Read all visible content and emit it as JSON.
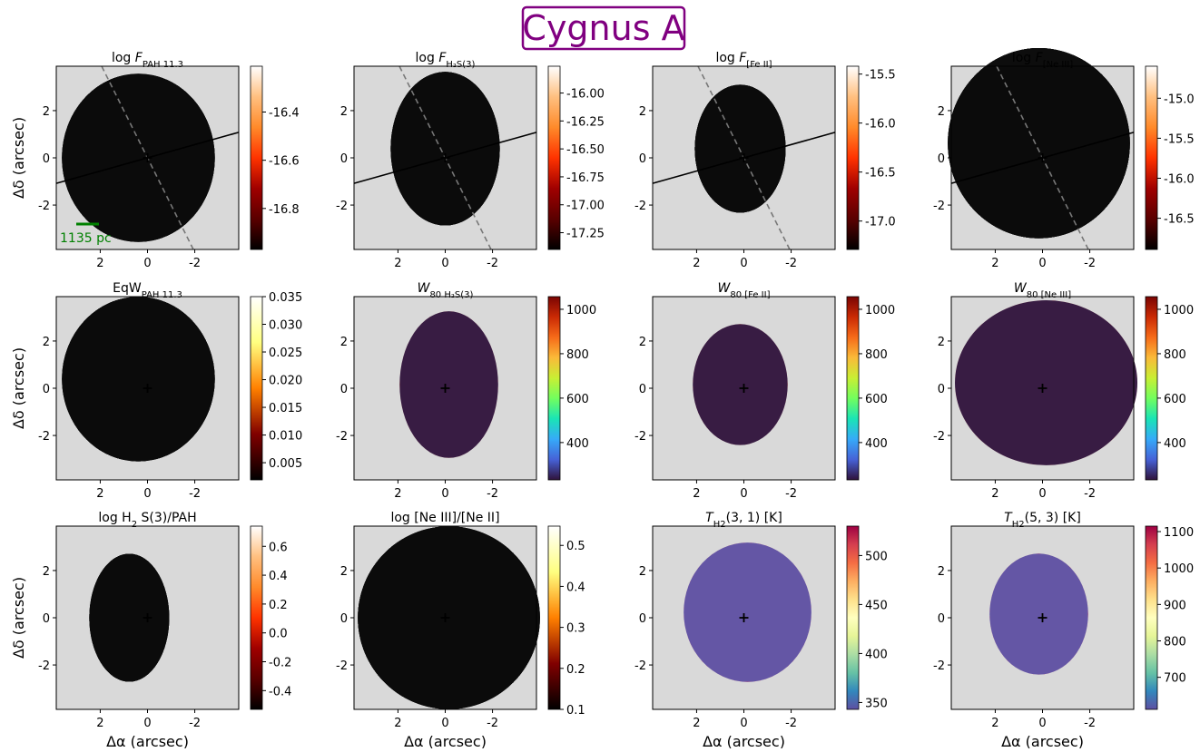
{
  "title": "Cygnus A",
  "chart_data": [
    {
      "type": "heatmap",
      "title": {
        "prefix": "log ",
        "symbol": "F",
        "sub": "PAH 11.3"
      },
      "ylabel": "Δδ (arcsec)",
      "annotation": "1135 pc",
      "xlim": [
        3.86,
        -3.86
      ],
      "ylim": [
        -3.88,
        3.88
      ],
      "xticks": [
        2,
        0,
        -2
      ],
      "yticks": [
        -2,
        0,
        2
      ],
      "colormap": "gist_heat",
      "clim": [
        -16.97,
        -16.21
      ],
      "cticks": [
        -16.8,
        -16.6,
        -16.4
      ]
    },
    {
      "type": "heatmap",
      "title": {
        "prefix": "log ",
        "symbol": "F",
        "sub": "H₂S(3)"
      },
      "xlim": [
        3.86,
        -3.86
      ],
      "ylim": [
        -3.88,
        3.88
      ],
      "xticks": [
        2,
        0,
        -2
      ],
      "yticks": [
        -2,
        0,
        2
      ],
      "colormap": "gist_heat",
      "clim": [
        -17.4,
        -15.76
      ],
      "cticks": [
        {
          "value": -17.25,
          "label": "-17.25"
        },
        {
          "value": -17,
          "label": "-17.00"
        },
        {
          "value": -16.75,
          "label": "-16.75"
        },
        {
          "value": -16.5,
          "label": "-16.50"
        },
        {
          "value": -16.25,
          "label": "-16.25"
        },
        {
          "value": -16,
          "label": "-16.00"
        }
      ]
    },
    {
      "type": "heatmap",
      "title": {
        "prefix": "log ",
        "symbol": "F",
        "sub": "[Fe II]"
      },
      "xlim": [
        3.86,
        -3.86
      ],
      "ylim": [
        -3.88,
        3.88
      ],
      "xticks": [
        2,
        0,
        -2
      ],
      "yticks": [
        -2,
        0,
        2
      ],
      "colormap": "gist_heat",
      "clim": [
        -17.29,
        -15.42
      ],
      "cticks": [
        {
          "value": -17,
          "label": "-17.0"
        },
        -16.5,
        {
          "value": -16,
          "label": "-16.0"
        },
        -15.5
      ]
    },
    {
      "type": "heatmap",
      "title": {
        "prefix": "log ",
        "symbol": "F",
        "sub": "[Ne III]"
      },
      "xlim": [
        3.86,
        -3.86
      ],
      "ylim": [
        -3.88,
        3.88
      ],
      "xticks": [
        2,
        0,
        -2
      ],
      "yticks": [
        -2,
        0,
        2
      ],
      "colormap": "gist_heat",
      "clim": [
        -16.89,
        -14.6
      ],
      "cticks": [
        -16.5,
        {
          "value": -16,
          "label": "-16.0"
        },
        -15.5,
        {
          "value": -15,
          "label": "-15.0"
        }
      ]
    },
    {
      "type": "heatmap",
      "title": {
        "prefix": "EqW",
        "sub": "PAH 11.3"
      },
      "ylabel": "Δδ (arcsec)",
      "xlim": [
        3.86,
        -3.86
      ],
      "ylim": [
        -3.88,
        3.88
      ],
      "xticks": [
        2,
        0,
        -2
      ],
      "yticks": [
        -2,
        0,
        2
      ],
      "colormap": "afmhot",
      "clim": [
        0.0019,
        0.035
      ],
      "cticks": [
        0.005,
        {
          "value": 0.01,
          "label": "0.010"
        },
        0.015,
        {
          "value": 0.02,
          "label": "0.020"
        },
        0.025,
        {
          "value": 0.03,
          "label": "0.030"
        },
        0.035
      ]
    },
    {
      "type": "heatmap",
      "title": {
        "symbol": "W",
        "sub": "80 H₂S(3)"
      },
      "xlim": [
        3.86,
        -3.86
      ],
      "ylim": [
        -3.88,
        3.88
      ],
      "xticks": [
        2,
        0,
        -2
      ],
      "yticks": [
        -2,
        0,
        2
      ],
      "colormap": "turbo",
      "clim": [
        232,
        1057
      ],
      "cticks": [
        400,
        600,
        800,
        1000
      ]
    },
    {
      "type": "heatmap",
      "title": {
        "symbol": "W",
        "sub": "80 [Fe II]"
      },
      "xlim": [
        3.86,
        -3.86
      ],
      "ylim": [
        -3.88,
        3.88
      ],
      "xticks": [
        2,
        0,
        -2
      ],
      "yticks": [
        -2,
        0,
        2
      ],
      "colormap": "turbo",
      "clim": [
        232,
        1057
      ],
      "cticks": [
        400,
        600,
        800,
        1000
      ]
    },
    {
      "type": "heatmap",
      "title": {
        "symbol": "W",
        "sub": "80 [Ne III]"
      },
      "xlim": [
        3.86,
        -3.86
      ],
      "ylim": [
        -3.88,
        3.88
      ],
      "xticks": [
        2,
        0,
        -2
      ],
      "yticks": [
        -2,
        0,
        2
      ],
      "colormap": "turbo",
      "clim": [
        232,
        1057
      ],
      "cticks": [
        400,
        600,
        800,
        1000
      ]
    },
    {
      "type": "heatmap",
      "title": {
        "prefix": "log H",
        "sub": "2",
        "suffix": " S(3)/PAH"
      },
      "ylabel": "Δδ (arcsec)",
      "xlabel": "Δα (arcsec)",
      "xlim": [
        3.86,
        -3.86
      ],
      "ylim": [
        -3.88,
        3.88
      ],
      "xticks": [
        2,
        0,
        -2
      ],
      "yticks": [
        -2,
        0,
        2
      ],
      "colormap": "gist_heat",
      "clim": [
        -0.53,
        0.74
      ],
      "cticks": [
        -0.4,
        -0.2,
        {
          "value": 0,
          "label": "0.0"
        },
        0.2,
        0.4,
        0.6
      ]
    },
    {
      "type": "heatmap",
      "title": {
        "prefix": "log [Ne III]/[Ne II]"
      },
      "xlabel": "Δα (arcsec)",
      "xlim": [
        3.86,
        -3.86
      ],
      "ylim": [
        -3.88,
        3.88
      ],
      "xticks": [
        2,
        0,
        -2
      ],
      "yticks": [
        -2,
        0,
        2
      ],
      "colormap": "afmhot",
      "clim": [
        0.1,
        0.547
      ],
      "cticks": [
        0.1,
        0.2,
        0.3,
        0.4,
        0.5
      ]
    },
    {
      "type": "heatmap",
      "title": {
        "symbol": "T",
        "sub": "H2",
        "suffix": "(3, 1) [K]"
      },
      "xlabel": "Δα (arcsec)",
      "xlim": [
        3.86,
        -3.86
      ],
      "ylim": [
        -3.88,
        3.88
      ],
      "xticks": [
        2,
        0,
        -2
      ],
      "yticks": [
        -2,
        0,
        2
      ],
      "colormap": "spectral_r",
      "clim": [
        343,
        530
      ],
      "cticks": [
        350,
        400,
        450,
        500
      ]
    },
    {
      "type": "heatmap",
      "title": {
        "symbol": "T",
        "sub": "H2",
        "suffix": "(5, 3) [K]"
      },
      "xlabel": "Δα (arcsec)",
      "xlim": [
        3.86,
        -3.86
      ],
      "ylim": [
        -3.88,
        3.88
      ],
      "xticks": [
        2,
        0,
        -2
      ],
      "yticks": [
        -2,
        0,
        2
      ],
      "colormap": "spectral_r",
      "clim": [
        612,
        1115
      ],
      "cticks": [
        700,
        800,
        900,
        1000,
        1100
      ]
    }
  ]
}
